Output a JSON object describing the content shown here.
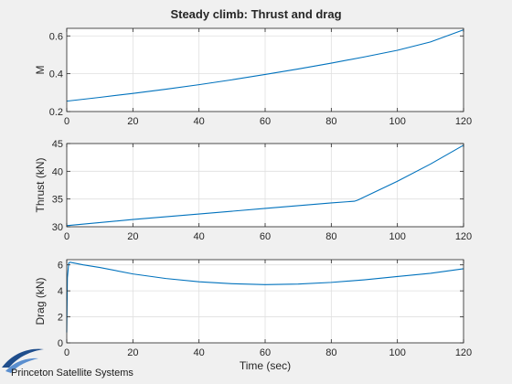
{
  "figure": {
    "title": "Steady climb: Thrust and drag",
    "logo_text": "Princeton Satellite Systems"
  },
  "colors": {
    "background": "#f0f0f0",
    "axes_background": "#ffffff",
    "line": "#0072bd",
    "grid": "#dfdfdf",
    "axis": "#262626",
    "logo_blue": "#1f4e8c"
  },
  "chart_data": [
    {
      "type": "line",
      "title": "Steady climb: Thrust and drag",
      "xlabel": "",
      "ylabel": "M",
      "xlim": [
        0,
        120
      ],
      "ylim": [
        0.2,
        0.64
      ],
      "xticks": [
        0,
        20,
        40,
        60,
        80,
        100,
        120
      ],
      "yticks": [
        0.2,
        0.4,
        0.6
      ],
      "grid": true,
      "x": [
        0,
        10,
        20,
        30,
        40,
        50,
        60,
        70,
        80,
        90,
        100,
        110,
        120
      ],
      "series": [
        {
          "values": [
            0.255,
            0.275,
            0.296,
            0.318,
            0.342,
            0.368,
            0.396,
            0.425,
            0.456,
            0.489,
            0.524,
            0.568,
            0.632
          ]
        }
      ]
    },
    {
      "type": "line",
      "xlabel": "",
      "ylabel": "Thrust (kN)",
      "xlim": [
        0,
        120
      ],
      "ylim": [
        30,
        45
      ],
      "xticks": [
        0,
        20,
        40,
        60,
        80,
        100,
        120
      ],
      "yticks": [
        30,
        35,
        40,
        45
      ],
      "grid": true,
      "x": [
        0,
        20,
        40,
        60,
        80,
        87,
        88,
        100,
        110,
        120
      ],
      "series": [
        {
          "values": [
            30.2,
            31.3,
            32.3,
            33.3,
            34.3,
            34.6,
            34.8,
            38.2,
            41.3,
            44.7
          ]
        }
      ]
    },
    {
      "type": "line",
      "xlabel": "Time (sec)",
      "ylabel": "Drag (kN)",
      "xlim": [
        0,
        120
      ],
      "ylim": [
        0,
        6.4
      ],
      "xticks": [
        0,
        20,
        40,
        60,
        80,
        100,
        120
      ],
      "yticks": [
        0,
        2,
        4,
        6
      ],
      "grid": true,
      "x": [
        0,
        0.2,
        0.6,
        1,
        5,
        10,
        20,
        30,
        40,
        50,
        60,
        70,
        80,
        90,
        100,
        110,
        120
      ],
      "series": [
        {
          "values": [
            0.8,
            5.0,
            6.15,
            6.2,
            6.0,
            5.8,
            5.3,
            4.95,
            4.7,
            4.55,
            4.48,
            4.52,
            4.65,
            4.85,
            5.1,
            5.35,
            5.7
          ]
        }
      ]
    }
  ]
}
